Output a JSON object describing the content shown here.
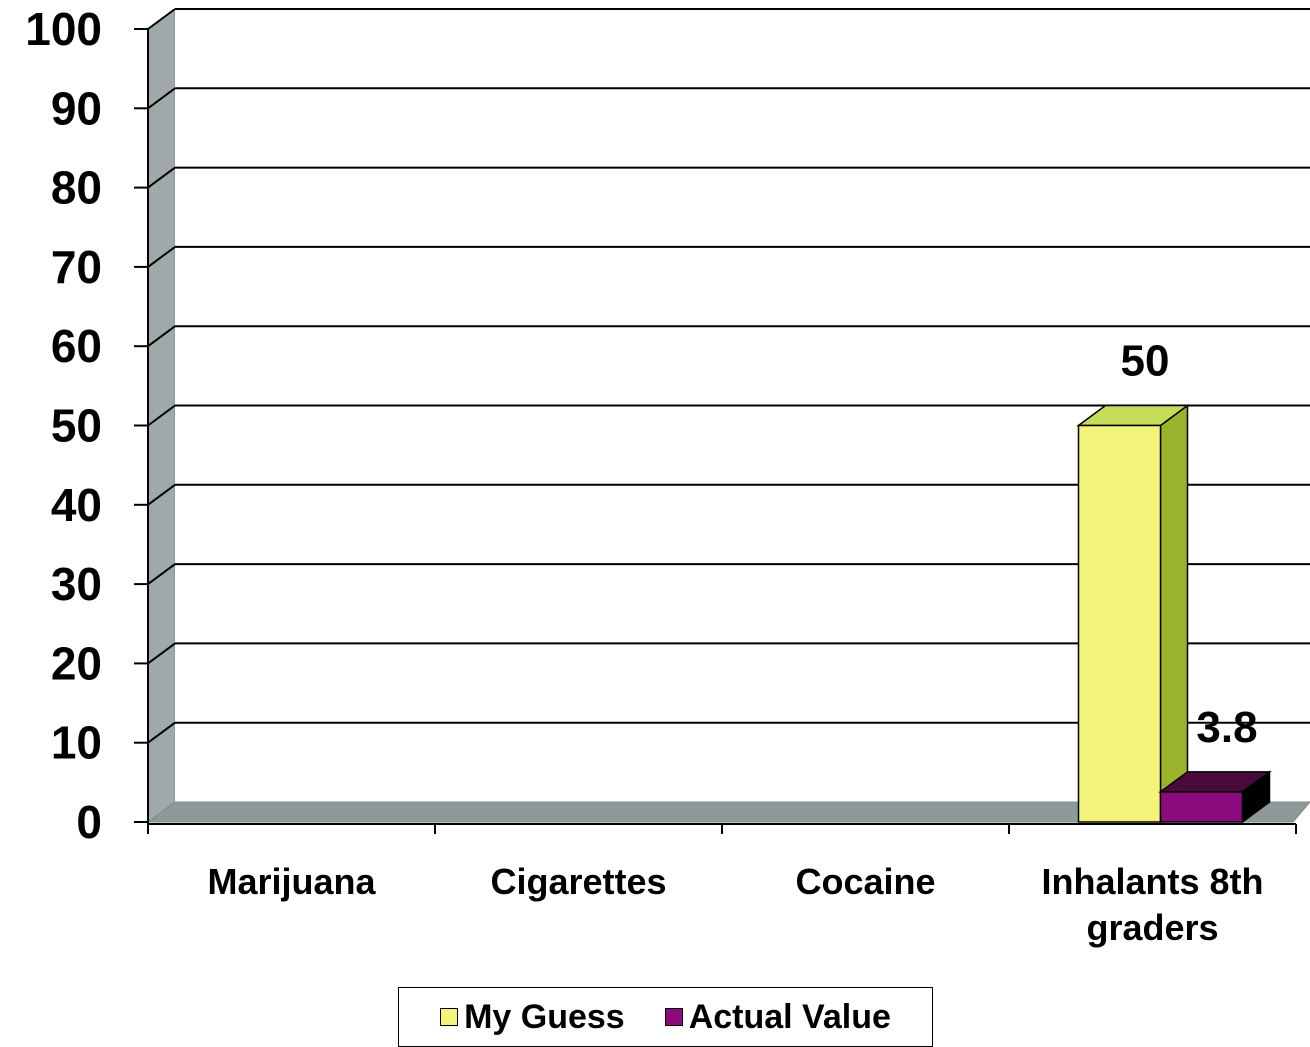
{
  "chart_data": {
    "type": "bar",
    "categories": [
      "Marijuana",
      "Cigarettes",
      "Cocaine",
      "Inhalants 8th graders"
    ],
    "series": [
      {
        "name": "My Guess",
        "values": [
          null,
          null,
          null,
          50
        ],
        "color": "#f4f47a",
        "side_color": "#9ab32c",
        "top_color": "#c6db5a"
      },
      {
        "name": "Actual Value",
        "values": [
          null,
          null,
          null,
          3.8
        ],
        "color": "#8b0a7e",
        "side_color": "#000000",
        "top_color": "#4a0a3a"
      }
    ],
    "data_labels": [
      "50",
      "3.8"
    ],
    "yticks": [
      "0",
      "10",
      "20",
      "30",
      "40",
      "50",
      "60",
      "70",
      "80",
      "90",
      "100"
    ],
    "ylim": [
      0,
      100
    ],
    "grid": true,
    "legend_position": "bottom",
    "colors": {
      "wall": "#9fa9a9",
      "floor": "#8e9a9a",
      "gridline": "#000000"
    }
  },
  "legend": {
    "items": [
      "My Guess",
      "Actual Value"
    ]
  }
}
